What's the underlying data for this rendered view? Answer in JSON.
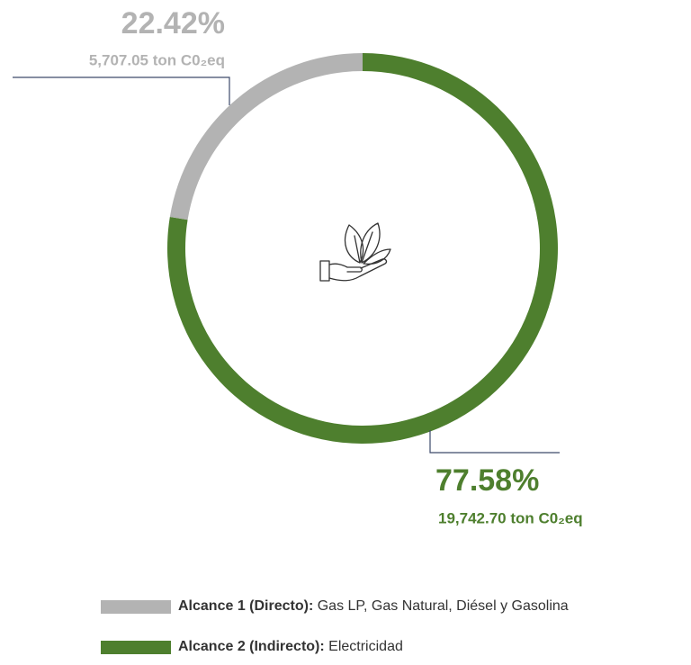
{
  "chart_data": {
    "type": "donut",
    "categories": [
      "Alcance 1 (Directo):",
      "Alcance 2 (Indirecto):"
    ],
    "descriptions": [
      "Gas LP, Gas Natural, Diésel y Gasolina",
      "Electricidad"
    ],
    "values": [
      22.42,
      77.58
    ],
    "value_labels": [
      "22.42%",
      "77.58%"
    ],
    "amount_labels": [
      "5,707.05 ton C0₂eq",
      "19,742.70 ton C0₂eq"
    ],
    "colors": [
      "#b3b3b3",
      "#4e7f2e"
    ]
  }
}
